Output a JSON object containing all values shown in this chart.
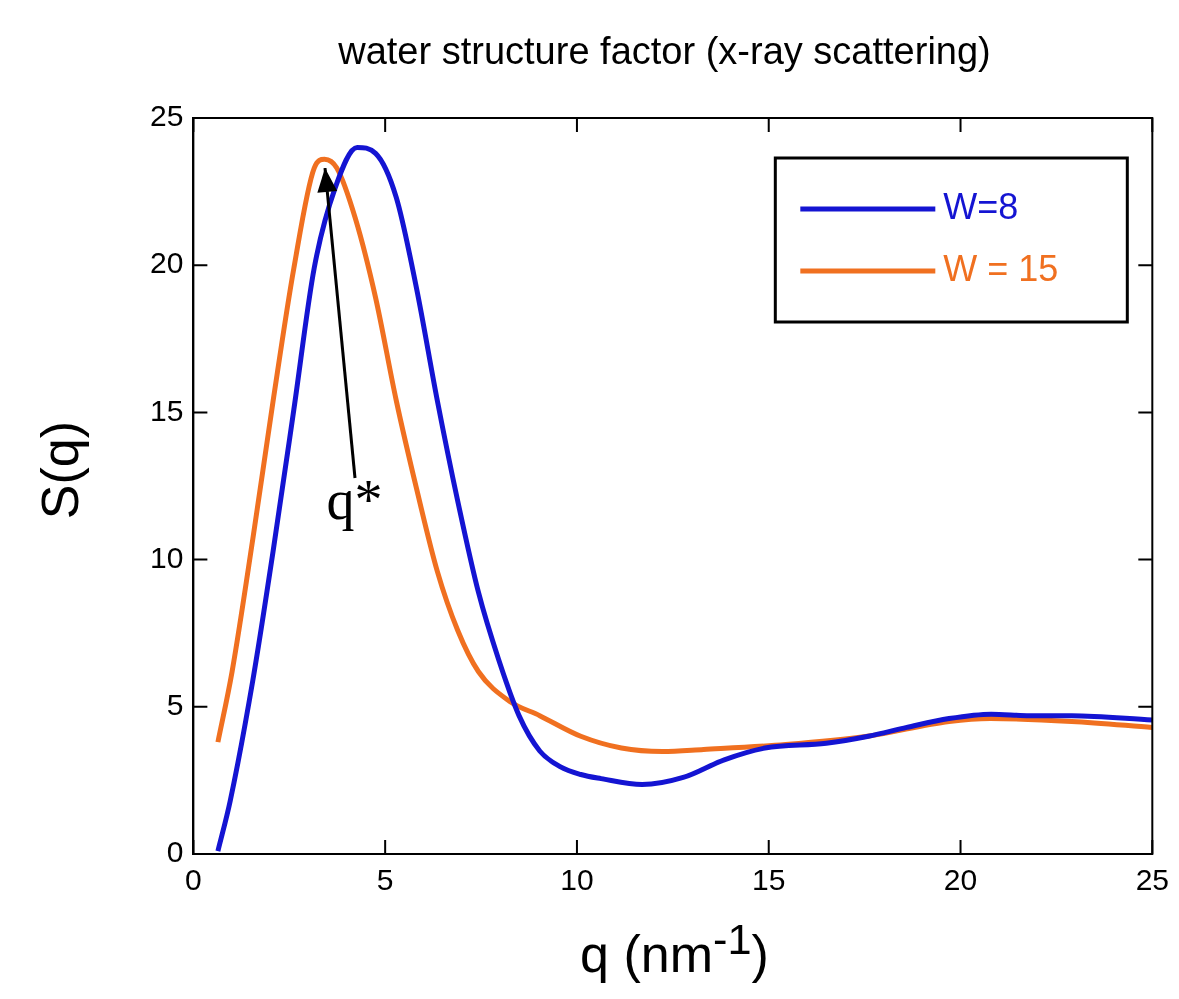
{
  "chart_data": {
    "type": "line",
    "title": "water structure factor (x-ray scattering)",
    "xlabel": "q (nm$^{-1}$)",
    "ylabel": "S(q)",
    "xlim": [
      0,
      25
    ],
    "xticks": [
      0,
      5,
      10,
      15,
      20,
      25
    ],
    "ylim": [
      0,
      25
    ],
    "yticks": [
      0,
      5,
      10,
      15,
      20,
      25
    ],
    "grid": false,
    "legend": "top right",
    "marker": "none",
    "line_style": "solid",
    "annotations": [
      {
        "text": "q*",
        "x": 3.42,
        "y": 23.3
      }
    ],
    "series": [
      {
        "name": "W=8",
        "color": "#1414d2",
        "x": [
          0.64,
          0.96,
          1.55,
          2.08,
          2.62,
          3.15,
          3.69,
          4.27,
          4.75,
          5.29,
          5.82,
          6.36,
          6.89,
          7.43,
          7.96,
          8.49,
          9.03,
          9.56,
          10.1,
          10.63,
          11.7,
          12.77,
          13.84,
          14.9,
          16.5,
          17.6,
          18.6,
          19.7,
          20.8,
          21.8,
          22.9,
          25
        ],
        "values": [
          0.1,
          1.8,
          5.9,
          10.3,
          15.1,
          19.9,
          22.6,
          24.0,
          23.8,
          22.3,
          19.2,
          15.4,
          12.0,
          8.9,
          6.6,
          4.7,
          3.5,
          2.97,
          2.7,
          2.56,
          2.36,
          2.6,
          3.2,
          3.6,
          3.76,
          4.0,
          4.3,
          4.6,
          4.75,
          4.7,
          4.7,
          4.55
        ]
      },
      {
        "name": "W = 15",
        "color": "#f07020",
        "x": [
          0.64,
          1.01,
          1.55,
          2.08,
          2.62,
          3.15,
          3.42,
          3.74,
          4.22,
          4.75,
          5.29,
          5.82,
          6.36,
          6.89,
          7.43,
          8.23,
          9.03,
          10.1,
          11.16,
          12.23,
          13.3,
          15.44,
          17.57,
          19.7,
          20.78,
          22.9,
          25
        ],
        "values": [
          3.8,
          6.2,
          10.7,
          15.4,
          19.9,
          23.3,
          23.6,
          23.3,
          21.6,
          18.9,
          15.4,
          12.4,
          9.6,
          7.6,
          6.2,
          5.2,
          4.7,
          4.0,
          3.6,
          3.48,
          3.55,
          3.72,
          4.0,
          4.5,
          4.6,
          4.5,
          4.3
        ]
      }
    ]
  }
}
